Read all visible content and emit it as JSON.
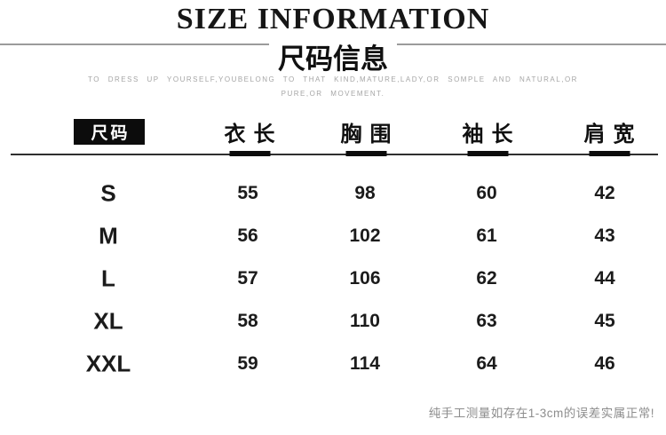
{
  "header": {
    "title": "SIZE INFORMATION",
    "subtitle": "尺码信息",
    "tagline_line1": "TO DRESS UP YOURSELF,YOUBELONG TO THAT KIND,MATURE,LADY,OR SOMPLE AND NATURAL,OR",
    "tagline_line2": "PURE,OR MOVEMENT."
  },
  "table": {
    "columns": [
      "尺码",
      "衣长",
      "胸围",
      "袖长",
      "肩宽"
    ],
    "rows": [
      {
        "size": "S",
        "values": [
          "55",
          "98",
          "60",
          "42"
        ]
      },
      {
        "size": "M",
        "values": [
          "56",
          "102",
          "61",
          "43"
        ]
      },
      {
        "size": "L",
        "values": [
          "57",
          "106",
          "62",
          "44"
        ]
      },
      {
        "size": "XL",
        "values": [
          "58",
          "110",
          "63",
          "45"
        ]
      },
      {
        "size": "XXL",
        "values": [
          "59",
          "114",
          "64",
          "46"
        ]
      }
    ]
  },
  "footnote": "纯手工测量如存在1-3cm的误差实属正常!",
  "colors": {
    "text": "#161616",
    "muted_text": "#a6a6a6",
    "note_text": "#8d8d8d",
    "header_box_bg": "#0c0c0c",
    "header_box_text": "#ffffff",
    "divider": "#2f2f2f",
    "subtitle_rule": "#9b9b9b"
  }
}
